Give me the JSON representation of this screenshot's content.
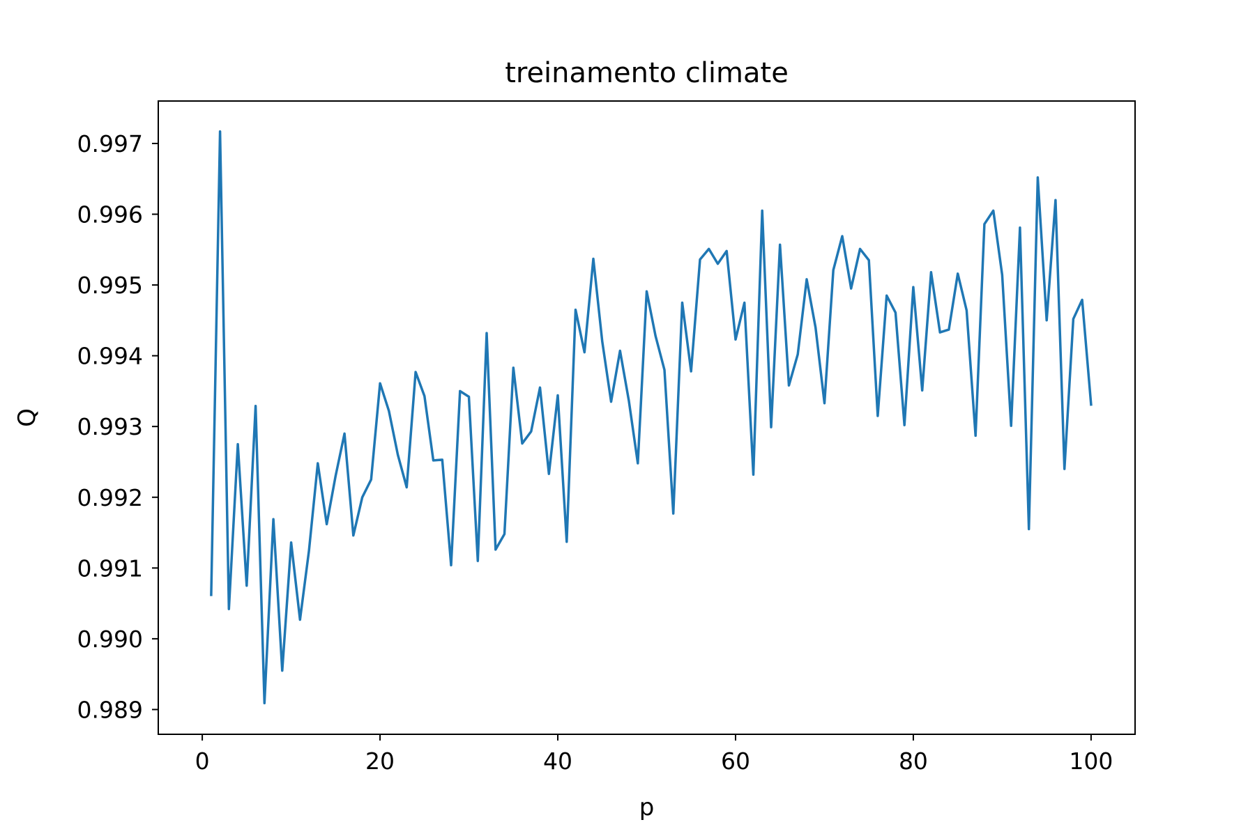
{
  "chart_data": {
    "type": "line",
    "title": "treinamento climate",
    "xlabel": "p",
    "ylabel": "Q",
    "xlim": [
      -4.95,
      104.95
    ],
    "ylim": [
      0.98865,
      0.9976
    ],
    "xticks": [
      0,
      20,
      40,
      60,
      80,
      100
    ],
    "xtick_labels": [
      "0",
      "20",
      "40",
      "60",
      "80",
      "100"
    ],
    "yticks": [
      0.989,
      0.99,
      0.991,
      0.992,
      0.993,
      0.994,
      0.995,
      0.996,
      0.997
    ],
    "ytick_labels": [
      "0.989",
      "0.990",
      "0.991",
      "0.992",
      "0.993",
      "0.994",
      "0.995",
      "0.996",
      "0.997"
    ],
    "grid": false,
    "series": [
      {
        "color": "#1f77b4",
        "x": [
          1,
          2,
          3,
          4,
          5,
          6,
          7,
          8,
          9,
          10,
          11,
          12,
          13,
          14,
          15,
          16,
          17,
          18,
          19,
          20,
          21,
          22,
          23,
          24,
          25,
          26,
          27,
          28,
          29,
          30,
          31,
          32,
          33,
          34,
          35,
          36,
          37,
          38,
          39,
          40,
          41,
          42,
          43,
          44,
          45,
          46,
          47,
          48,
          49,
          50,
          51,
          52,
          53,
          54,
          55,
          56,
          57,
          58,
          59,
          60,
          61,
          62,
          63,
          64,
          65,
          66,
          67,
          68,
          69,
          70,
          71,
          72,
          73,
          74,
          75,
          76,
          77,
          78,
          79,
          80,
          81,
          82,
          83,
          84,
          85,
          86,
          87,
          88,
          89,
          90,
          91,
          92,
          93,
          94,
          95,
          96,
          97,
          98,
          99,
          100
        ],
        "y": [
          0.99062,
          0.99717,
          0.99042,
          0.99275,
          0.99075,
          0.99329,
          0.98909,
          0.99169,
          0.98955,
          0.99136,
          0.99027,
          0.99124,
          0.99248,
          0.99162,
          0.9923,
          0.9929,
          0.99146,
          0.992,
          0.99225,
          0.99361,
          0.99322,
          0.9926,
          0.99214,
          0.99377,
          0.99343,
          0.99252,
          0.99253,
          0.99104,
          0.9935,
          0.99342,
          0.9911,
          0.99432,
          0.99126,
          0.99148,
          0.99383,
          0.99276,
          0.99293,
          0.99355,
          0.99233,
          0.99344,
          0.99137,
          0.99465,
          0.99405,
          0.99537,
          0.9942,
          0.99335,
          0.99407,
          0.99336,
          0.99248,
          0.99491,
          0.99428,
          0.9938,
          0.99177,
          0.99475,
          0.99378,
          0.99536,
          0.99551,
          0.9953,
          0.99548,
          0.99423,
          0.99475,
          0.99232,
          0.99605,
          0.99299,
          0.99557,
          0.99358,
          0.99402,
          0.99508,
          0.9944,
          0.99333,
          0.99521,
          0.99569,
          0.99495,
          0.99551,
          0.99535,
          0.99315,
          0.99485,
          0.99461,
          0.99302,
          0.99497,
          0.99351,
          0.99518,
          0.99433,
          0.99437,
          0.99516,
          0.99464,
          0.99287,
          0.99586,
          0.99605,
          0.99514,
          0.99301,
          0.99581,
          0.99155,
          0.99652,
          0.9945,
          0.9962,
          0.9924,
          0.99452,
          0.99479,
          0.99331
        ]
      }
    ]
  }
}
